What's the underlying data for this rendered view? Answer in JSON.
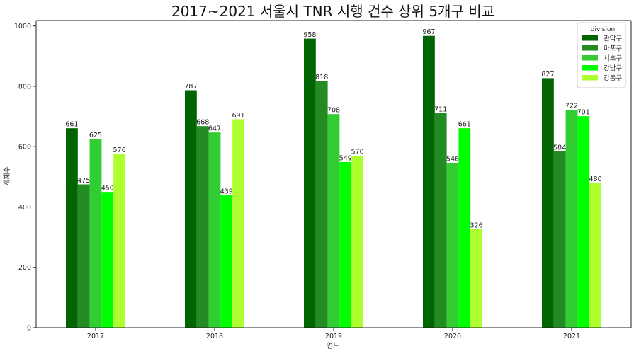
{
  "chart_data": {
    "type": "bar",
    "title": "2017~2021 서울시 TNR 시행 건수 상위 5개구 비교",
    "xlabel": "연도",
    "ylabel": "개체수",
    "categories": [
      "2017",
      "2018",
      "2019",
      "2020",
      "2021"
    ],
    "yticks": [
      0,
      200,
      400,
      600,
      800,
      1000
    ],
    "ylim": [
      0,
      1018
    ],
    "grid": false,
    "legend": {
      "title": "division",
      "placement": "top-right"
    },
    "series": [
      {
        "name": "관악구",
        "color": "#006400",
        "values": [
          661,
          787,
          958,
          967,
          827
        ]
      },
      {
        "name": "마포구",
        "color": "#228b22",
        "values": [
          475,
          668,
          818,
          711,
          584
        ]
      },
      {
        "name": "서초구",
        "color": "#32cd32",
        "values": [
          625,
          647,
          708,
          546,
          722
        ]
      },
      {
        "name": "강남구",
        "color": "#00ff00",
        "values": [
          450,
          439,
          549,
          661,
          701
        ]
      },
      {
        "name": "강동구",
        "color": "#adff2f",
        "values": [
          576,
          691,
          570,
          326,
          480
        ]
      }
    ]
  }
}
